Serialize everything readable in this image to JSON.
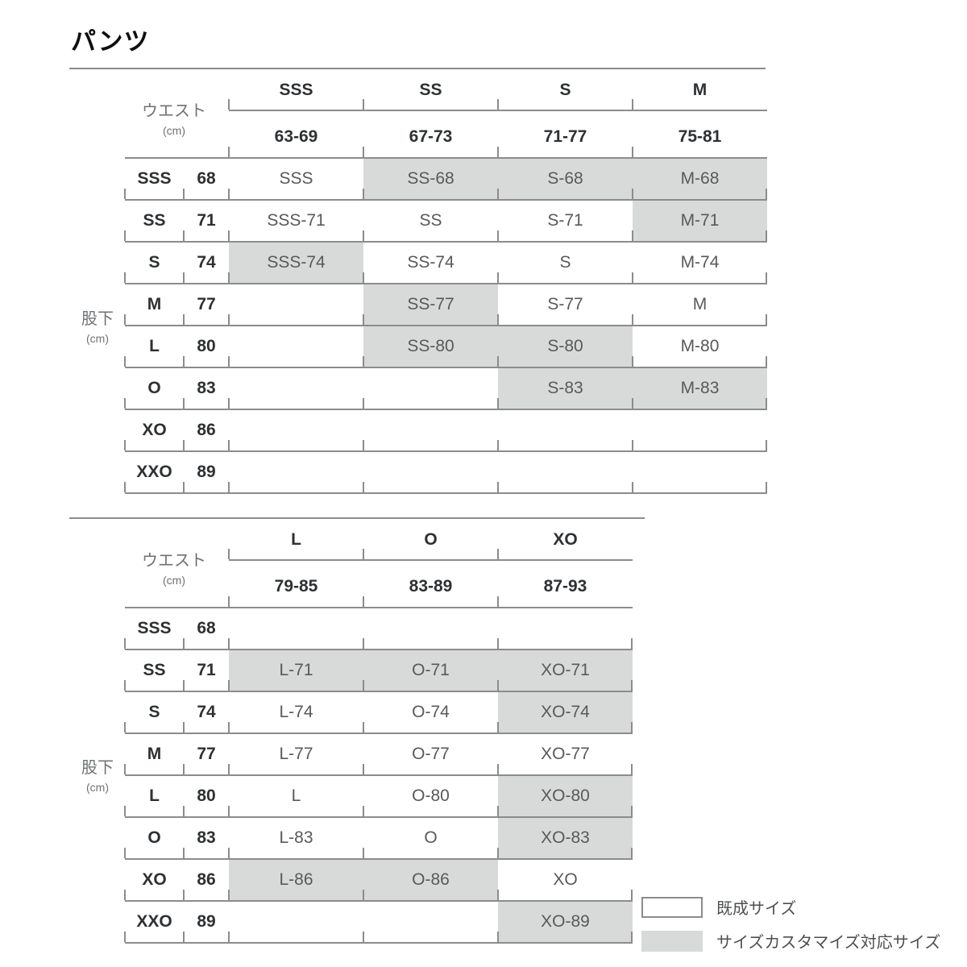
{
  "title": "パンツ",
  "axis_labels": {
    "waist": "ウエスト",
    "inseam": "股下",
    "unit": "(cm)"
  },
  "legend": {
    "ready_made": "既成サイズ",
    "customizable": "サイズカスタマイズ対応サイズ"
  },
  "colors": {
    "highlight_gray": "#d8dada",
    "line_gray": "#8c8c8c",
    "ready_made_white": "#ffffff"
  },
  "chart_data": [
    {
      "type": "table",
      "title": "パンツ sizes SSS–M",
      "col_axis": "ウエスト (cm)",
      "row_axis": "股下 (cm)",
      "columns": [
        {
          "size": "SSS",
          "waist": "63-69"
        },
        {
          "size": "SS",
          "waist": "67-73"
        },
        {
          "size": "S",
          "waist": "71-77"
        },
        {
          "size": "M",
          "waist": "75-81"
        }
      ],
      "rows": [
        {
          "size": "SSS",
          "inseam": "68",
          "cells": [
            {
              "v": "SSS",
              "custom": false
            },
            {
              "v": "SS-68",
              "custom": true
            },
            {
              "v": "S-68",
              "custom": true
            },
            {
              "v": "M-68",
              "custom": true
            }
          ]
        },
        {
          "size": "SS",
          "inseam": "71",
          "cells": [
            {
              "v": "SSS-71",
              "custom": false
            },
            {
              "v": "SS",
              "custom": false
            },
            {
              "v": "S-71",
              "custom": false
            },
            {
              "v": "M-71",
              "custom": true
            }
          ]
        },
        {
          "size": "S",
          "inseam": "74",
          "cells": [
            {
              "v": "SSS-74",
              "custom": true
            },
            {
              "v": "SS-74",
              "custom": false
            },
            {
              "v": "S",
              "custom": false
            },
            {
              "v": "M-74",
              "custom": false
            }
          ]
        },
        {
          "size": "M",
          "inseam": "77",
          "cells": [
            {
              "v": "",
              "custom": false
            },
            {
              "v": "SS-77",
              "custom": true
            },
            {
              "v": "S-77",
              "custom": false
            },
            {
              "v": "M",
              "custom": false
            }
          ]
        },
        {
          "size": "L",
          "inseam": "80",
          "cells": [
            {
              "v": "",
              "custom": false
            },
            {
              "v": "SS-80",
              "custom": true
            },
            {
              "v": "S-80",
              "custom": true
            },
            {
              "v": "M-80",
              "custom": false
            }
          ]
        },
        {
          "size": "O",
          "inseam": "83",
          "cells": [
            {
              "v": "",
              "custom": false
            },
            {
              "v": "",
              "custom": false
            },
            {
              "v": "S-83",
              "custom": true
            },
            {
              "v": "M-83",
              "custom": true
            }
          ]
        },
        {
          "size": "XO",
          "inseam": "86",
          "cells": [
            {
              "v": "",
              "custom": false
            },
            {
              "v": "",
              "custom": false
            },
            {
              "v": "",
              "custom": false
            },
            {
              "v": "",
              "custom": false
            }
          ]
        },
        {
          "size": "XXO",
          "inseam": "89",
          "cells": [
            {
              "v": "",
              "custom": false
            },
            {
              "v": "",
              "custom": false
            },
            {
              "v": "",
              "custom": false
            },
            {
              "v": "",
              "custom": false
            }
          ]
        }
      ]
    },
    {
      "type": "table",
      "title": "パンツ sizes L–XO",
      "col_axis": "ウエスト (cm)",
      "row_axis": "股下 (cm)",
      "columns": [
        {
          "size": "L",
          "waist": "79-85"
        },
        {
          "size": "O",
          "waist": "83-89"
        },
        {
          "size": "XO",
          "waist": "87-93"
        }
      ],
      "rows": [
        {
          "size": "SSS",
          "inseam": "68",
          "cells": [
            {
              "v": "",
              "custom": false
            },
            {
              "v": "",
              "custom": false
            },
            {
              "v": "",
              "custom": false
            }
          ]
        },
        {
          "size": "SS",
          "inseam": "71",
          "cells": [
            {
              "v": "L-71",
              "custom": true
            },
            {
              "v": "O-71",
              "custom": true
            },
            {
              "v": "XO-71",
              "custom": true
            }
          ]
        },
        {
          "size": "S",
          "inseam": "74",
          "cells": [
            {
              "v": "L-74",
              "custom": false
            },
            {
              "v": "O-74",
              "custom": false
            },
            {
              "v": "XO-74",
              "custom": true
            }
          ]
        },
        {
          "size": "M",
          "inseam": "77",
          "cells": [
            {
              "v": "L-77",
              "custom": false
            },
            {
              "v": "O-77",
              "custom": false
            },
            {
              "v": "XO-77",
              "custom": false
            }
          ]
        },
        {
          "size": "L",
          "inseam": "80",
          "cells": [
            {
              "v": "L",
              "custom": false
            },
            {
              "v": "O-80",
              "custom": false
            },
            {
              "v": "XO-80",
              "custom": true
            }
          ]
        },
        {
          "size": "O",
          "inseam": "83",
          "cells": [
            {
              "v": "L-83",
              "custom": false
            },
            {
              "v": "O",
              "custom": false
            },
            {
              "v": "XO-83",
              "custom": true
            }
          ]
        },
        {
          "size": "XO",
          "inseam": "86",
          "cells": [
            {
              "v": "L-86",
              "custom": true
            },
            {
              "v": "O-86",
              "custom": true
            },
            {
              "v": "XO",
              "custom": false
            }
          ]
        },
        {
          "size": "XXO",
          "inseam": "89",
          "cells": [
            {
              "v": "",
              "custom": false
            },
            {
              "v": "",
              "custom": false
            },
            {
              "v": "XO-89",
              "custom": true
            }
          ]
        }
      ]
    }
  ]
}
